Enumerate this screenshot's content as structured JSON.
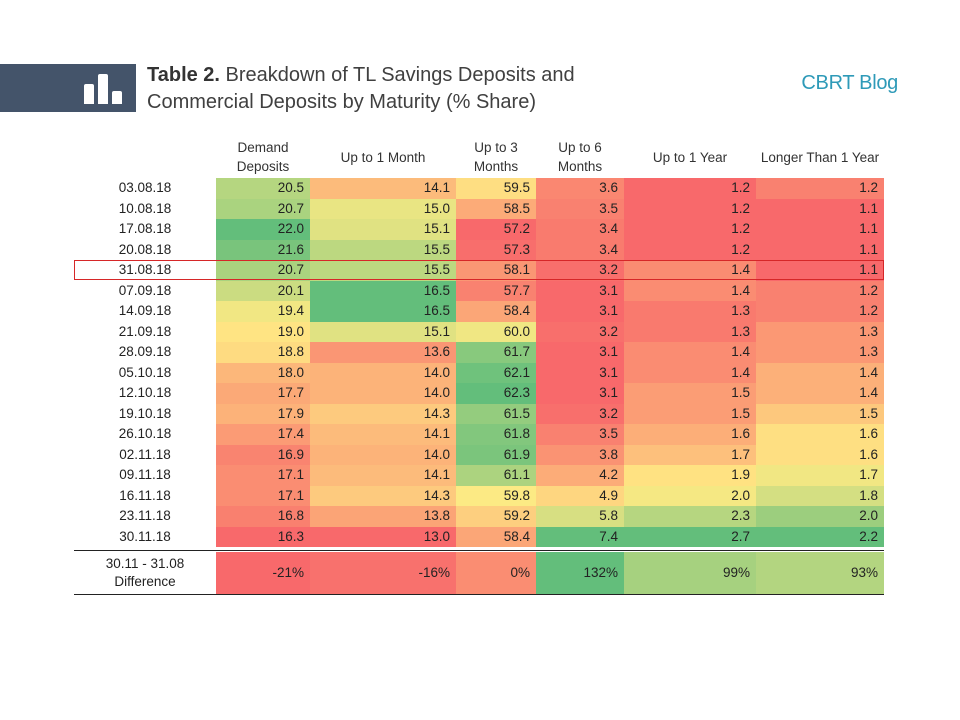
{
  "header": {
    "title_bold": "Table 2.",
    "title_rest": " Breakdown of TL Savings Deposits and Commercial Deposits by Maturity (% Share)",
    "brand": "CBRT Blog"
  },
  "chart_data": {
    "type": "table",
    "columns": [
      "Demand Deposits",
      "Up to 1 Month",
      "Up to 3 Months",
      "Up to 6 Months",
      "Up to 1 Year",
      "Longer Than 1 Year"
    ],
    "rows": [
      {
        "date": "03.08.18",
        "values": [
          "20.5",
          "14.1",
          "59.5",
          "3.6",
          "1.2",
          "1.2"
        ]
      },
      {
        "date": "10.08.18",
        "values": [
          "20.7",
          "15.0",
          "58.5",
          "3.5",
          "1.2",
          "1.1"
        ]
      },
      {
        "date": "17.08.18",
        "values": [
          "22.0",
          "15.1",
          "57.2",
          "3.4",
          "1.2",
          "1.1"
        ]
      },
      {
        "date": "20.08.18",
        "values": [
          "21.6",
          "15.5",
          "57.3",
          "3.4",
          "1.2",
          "1.1"
        ]
      },
      {
        "date": "31.08.18",
        "values": [
          "20.7",
          "15.5",
          "58.1",
          "3.2",
          "1.4",
          "1.1"
        ]
      },
      {
        "date": "07.09.18",
        "values": [
          "20.1",
          "16.5",
          "57.7",
          "3.1",
          "1.4",
          "1.2"
        ]
      },
      {
        "date": "14.09.18",
        "values": [
          "19.4",
          "16.5",
          "58.4",
          "3.1",
          "1.3",
          "1.2"
        ]
      },
      {
        "date": "21.09.18",
        "values": [
          "19.0",
          "15.1",
          "60.0",
          "3.2",
          "1.3",
          "1.3"
        ]
      },
      {
        "date": "28.09.18",
        "values": [
          "18.8",
          "13.6",
          "61.7",
          "3.1",
          "1.4",
          "1.3"
        ]
      },
      {
        "date": "05.10.18",
        "values": [
          "18.0",
          "14.0",
          "62.1",
          "3.1",
          "1.4",
          "1.4"
        ]
      },
      {
        "date": "12.10.18",
        "values": [
          "17.7",
          "14.0",
          "62.3",
          "3.1",
          "1.5",
          "1.4"
        ]
      },
      {
        "date": "19.10.18",
        "values": [
          "17.9",
          "14.3",
          "61.5",
          "3.2",
          "1.5",
          "1.5"
        ]
      },
      {
        "date": "26.10.18",
        "values": [
          "17.4",
          "14.1",
          "61.8",
          "3.5",
          "1.6",
          "1.6"
        ]
      },
      {
        "date": "02.11.18",
        "values": [
          "16.9",
          "14.0",
          "61.9",
          "3.8",
          "1.7",
          "1.6"
        ]
      },
      {
        "date": "09.11.18",
        "values": [
          "17.1",
          "14.1",
          "61.1",
          "4.2",
          "1.9",
          "1.7"
        ]
      },
      {
        "date": "16.11.18",
        "values": [
          "17.1",
          "14.3",
          "59.8",
          "4.9",
          "2.0",
          "1.8"
        ]
      },
      {
        "date": "23.11.18",
        "values": [
          "16.8",
          "13.8",
          "59.2",
          "5.8",
          "2.3",
          "2.0"
        ]
      },
      {
        "date": "30.11.18",
        "values": [
          "16.3",
          "13.0",
          "58.4",
          "7.4",
          "2.7",
          "2.2"
        ]
      }
    ],
    "highlighted_row": "31.08.18",
    "difference": {
      "label": "30.11 - 31.08 Difference",
      "values": [
        "-21%",
        "-16%",
        "0%",
        "132%",
        "99%",
        "93%"
      ],
      "numeric": [
        -21,
        -16,
        0,
        132,
        99,
        93
      ]
    },
    "color_scale": {
      "low": "#f8696b",
      "mid": "#ffeb84",
      "high": "#63be7b"
    }
  }
}
